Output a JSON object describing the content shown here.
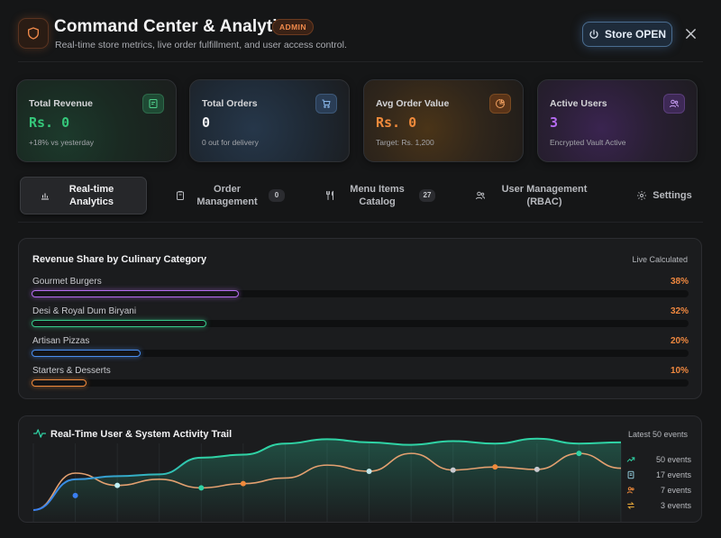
{
  "header": {
    "title": "Command Center & Analytics",
    "badge": "ADMIN",
    "subtitle": "Real-time store metrics, live order fulfillment, and user access control.",
    "store_button": "Store OPEN",
    "logo_icon": "shield-icon",
    "accent": "#f08a4b"
  },
  "kpis": [
    {
      "label": "Total Revenue",
      "value": "Rs. 0",
      "sub": "+18% vs yesterday",
      "icon": "receipt-icon",
      "color": "#35c77a"
    },
    {
      "label": "Total Orders",
      "value": "0",
      "sub": "0 out for delivery",
      "icon": "cart-icon",
      "color": "#f2f2f4"
    },
    {
      "label": "Avg Order Value",
      "value": "Rs. 0",
      "sub": "Target: Rs. 1,200",
      "icon": "pie-chart-icon",
      "color": "#f08a3b"
    },
    {
      "label": "Active Users",
      "value": "3",
      "sub": "Encrypted Vault Active",
      "icon": "users-icon",
      "color": "#b46bf0"
    }
  ],
  "tabs": [
    {
      "label": "Real-time Analytics",
      "icon": "bar-chart-icon",
      "active": true
    },
    {
      "label": "Order Management",
      "icon": "clipboard-icon",
      "count": "0"
    },
    {
      "label": "Menu Items Catalog",
      "icon": "utensils-icon",
      "count": "27"
    },
    {
      "label": "User Management (RBAC)",
      "icon": "users-icon"
    },
    {
      "label": "Settings",
      "icon": "gear-icon"
    }
  ],
  "revenue": {
    "title": "Revenue Share by Culinary Category",
    "status": "Live Calculated",
    "categories": [
      {
        "name": "Gourmet Burgers",
        "pct": "38%",
        "share": 0.38,
        "color": "#b66cf2"
      },
      {
        "name": "Desi & Royal Dum Biryani",
        "pct": "32%",
        "share": 0.32,
        "color": "#36c98a"
      },
      {
        "name": "Artisan Pizzas",
        "pct": "20%",
        "share": 0.2,
        "color": "#4a8ef0"
      },
      {
        "name": "Starters & Desserts",
        "pct": "10%",
        "share": 0.1,
        "color": "#f08a3b"
      }
    ]
  },
  "activity": {
    "title": "Real-Time User & System Activity Trail",
    "latest": "Latest 50 events",
    "legend": [
      {
        "text": "50 events",
        "icon": "trend-icon",
        "color": "#2fd3a5"
      },
      {
        "text": "17 events",
        "icon": "document-icon",
        "color": "#8fc6d6"
      },
      {
        "text": "7 events",
        "icon": "users-icon",
        "color": "#f08a3b"
      },
      {
        "text": "3 events",
        "icon": "swap-icon",
        "color": "#f0b03b"
      }
    ]
  },
  "chart_data": {
    "type": "line",
    "series": [
      {
        "values": [
          0,
          50,
          55,
          58,
          85,
          90,
          108,
          115,
          110,
          106,
          112,
          108,
          116,
          108,
          110
        ]
      },
      {
        "values": [
          0,
          60,
          40,
          50,
          36,
          43,
          52,
          73,
          63,
          92,
          65,
          70,
          66,
          92,
          68
        ]
      }
    ],
    "points_marked": true,
    "grid": true
  }
}
